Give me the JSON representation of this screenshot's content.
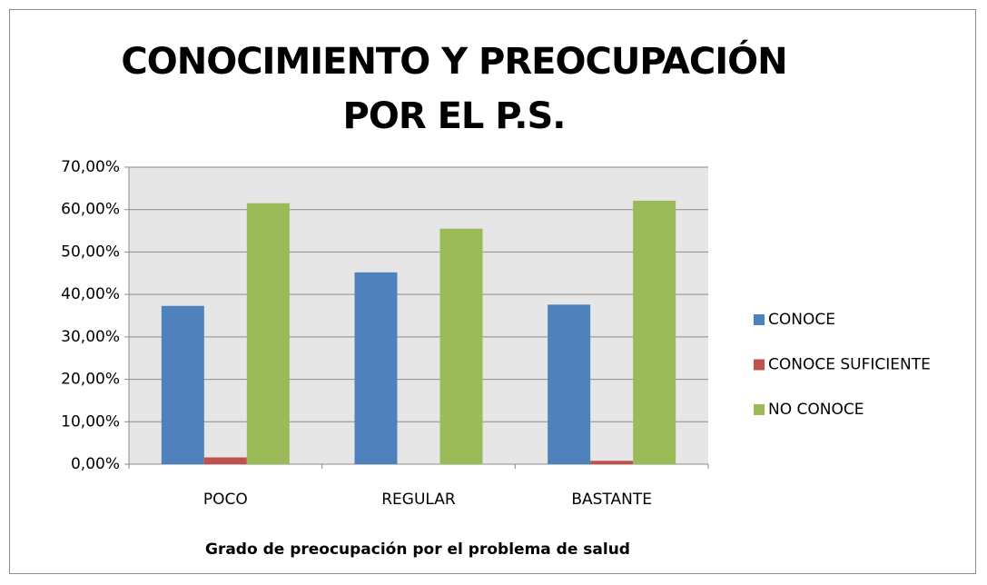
{
  "chart_data": {
    "type": "bar",
    "title": "CONOCIMIENTO Y PREOCUPACIÓN POR EL P.S.",
    "x_label": "Grado de preocupación por el problema de salud",
    "categories": [
      "POCO",
      "REGULAR",
      "BASTANTE"
    ],
    "series": [
      {
        "name": "CONOCE",
        "color": "#4f81bd",
        "values": [
          37.3,
          45.2,
          37.6
        ]
      },
      {
        "name": "CONOCE SUFICIENTE",
        "color": "#c0504d",
        "values": [
          1.6,
          0,
          0.8
        ]
      },
      {
        "name": "NO CONOCE",
        "color": "#9bbb59",
        "values": [
          61.5,
          55.5,
          62.1
        ]
      }
    ],
    "ylim": [
      0,
      70
    ],
    "yticks": [
      {
        "value": 0,
        "label": "0,00%"
      },
      {
        "value": 10,
        "label": "10,00%"
      },
      {
        "value": 20,
        "label": "20,00%"
      },
      {
        "value": 30,
        "label": "30,00%"
      },
      {
        "value": 40,
        "label": "40,00%"
      },
      {
        "value": 50,
        "label": "50,00%"
      },
      {
        "value": 60,
        "label": "60,00%"
      },
      {
        "value": 70,
        "label": "70,00%"
      }
    ],
    "grid": true,
    "legend": "right"
  }
}
